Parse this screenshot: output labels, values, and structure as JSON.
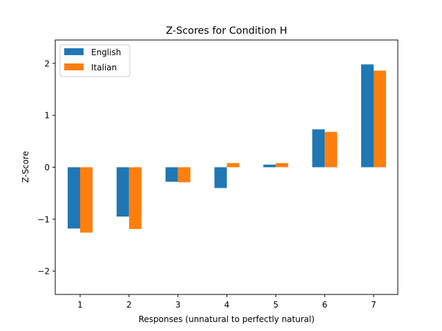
{
  "chart_data": {
    "type": "bar",
    "title": "Z-Scores for Condition H",
    "xlabel": "Responses (unnatural to perfectly natural)",
    "ylabel": "Z-Score",
    "categories": [
      "1",
      "2",
      "3",
      "4",
      "5",
      "6",
      "7"
    ],
    "ylim": [
      -2.45,
      2.45
    ],
    "yticks": [
      -2,
      -1,
      0,
      1,
      2
    ],
    "grid": false,
    "legend_position": "top-left",
    "series": [
      {
        "name": "English",
        "color": "#1f77b4",
        "values": [
          -1.18,
          -0.95,
          -0.28,
          -0.4,
          0.05,
          0.73,
          1.98
        ]
      },
      {
        "name": "Italian",
        "color": "#ff7f0e",
        "values": [
          -1.26,
          -1.19,
          -0.29,
          0.08,
          0.08,
          0.68,
          1.86
        ]
      }
    ]
  }
}
